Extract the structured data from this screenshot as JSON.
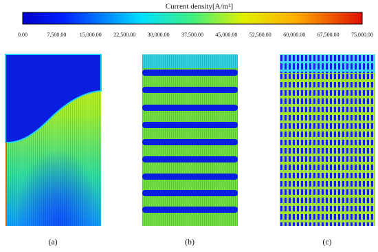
{
  "colorbar": {
    "title": "Current density[A/m²]",
    "ticks": [
      "0.00",
      "7,500.00",
      "15,000.00",
      "22,500.00",
      "30,000.00",
      "37,500.00",
      "45,000.00",
      "52,500.00",
      "60,000.00",
      "67,500.00",
      "75,000.00"
    ]
  },
  "panels": [
    {
      "label": "(a)"
    },
    {
      "label": "(b)"
    },
    {
      "label": "(c)"
    }
  ]
}
